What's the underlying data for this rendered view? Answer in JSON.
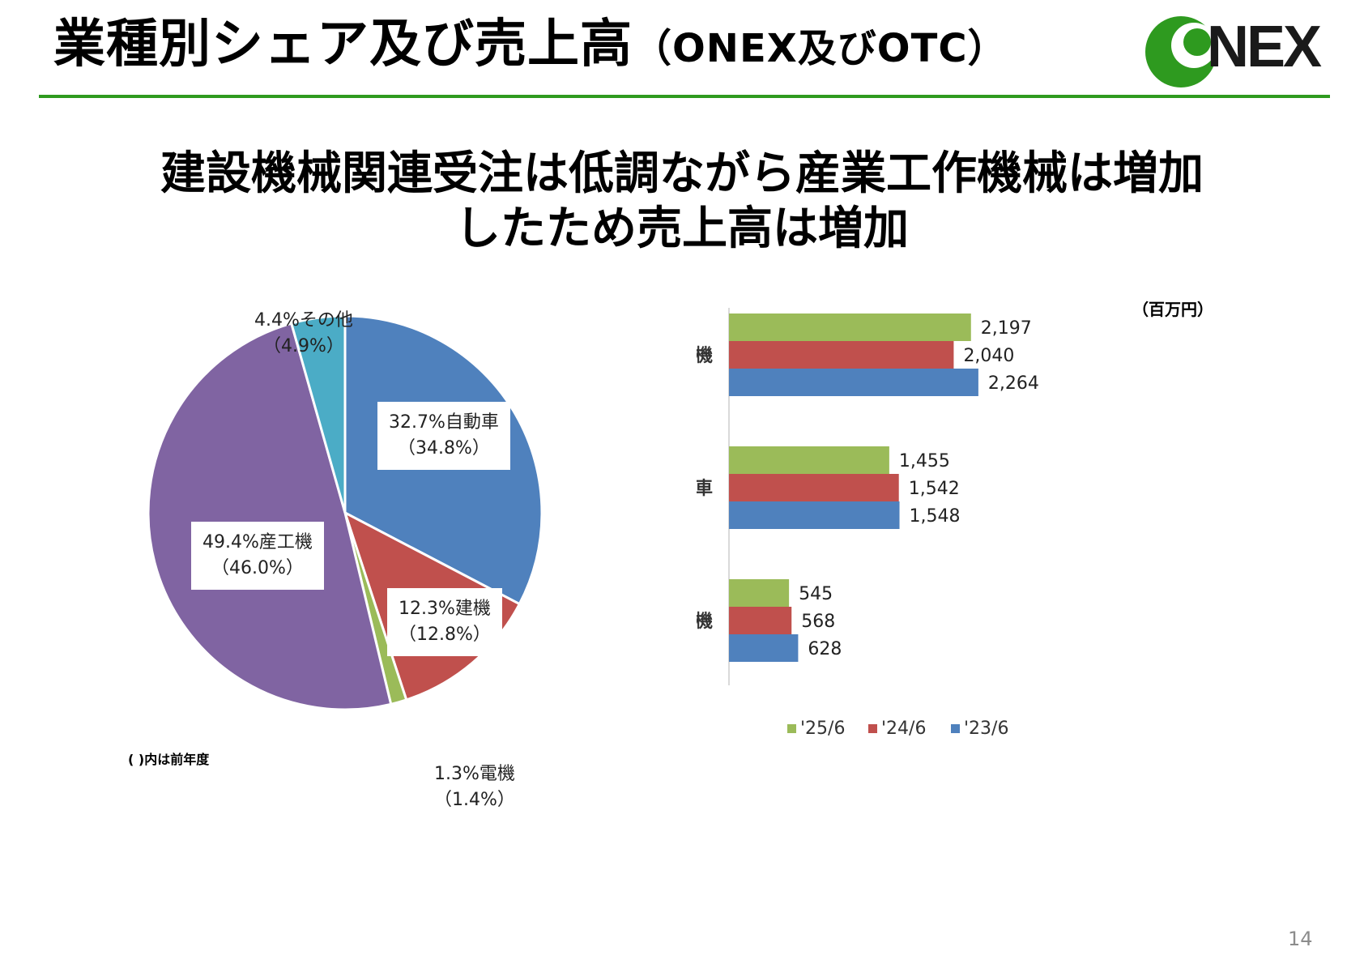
{
  "header": {
    "title": "業種別シェア及び売上高",
    "title_suffix": "（ONEX及びOTC）",
    "logo_text": "NEX",
    "accent_color": "#2e9a1f"
  },
  "headline": {
    "line1": "建設機械関連受注は低調ながら産業工作機械は増加",
    "line2": "したため売上高は増加"
  },
  "chart_data": [
    {
      "type": "pie",
      "start_angle_deg": 0,
      "direction": "clockwise",
      "slices": [
        {
          "name": "自動車",
          "value": 32.7,
          "prev": 34.8,
          "color": "#4f81bd",
          "label": "32.7%自動車",
          "sublabel": "（34.8%）"
        },
        {
          "name": "建機",
          "value": 12.3,
          "prev": 12.8,
          "color": "#c0504d",
          "label": "12.3%建機",
          "sublabel": "（12.8%）"
        },
        {
          "name": "電機",
          "value": 1.3,
          "prev": 1.4,
          "color": "#9bbb59",
          "label": "1.3%電機",
          "sublabel": "（1.4%）"
        },
        {
          "name": "産工機",
          "value": 49.4,
          "prev": 46.0,
          "color": "#8064a2",
          "label": "49.4%産工機",
          "sublabel": "（46.0%）"
        },
        {
          "name": "その他",
          "value": 4.4,
          "prev": 4.9,
          "color": "#4bacc6",
          "label": "4.4%その他",
          "sublabel": "（4.9%）"
        }
      ],
      "footnote": "( )内は前年度"
    },
    {
      "type": "bar",
      "orientation": "horizontal",
      "unit": "（百万円）",
      "categories": [
        "産工機",
        "自動車",
        "建機"
      ],
      "series": [
        {
          "name": "'25/6",
          "color": "#9bbb59",
          "values": [
            2197,
            1455,
            545
          ],
          "labels": [
            "2,197",
            "1,455",
            "545"
          ]
        },
        {
          "name": "'24/6",
          "color": "#c0504d",
          "values": [
            2040,
            1542,
            568
          ],
          "labels": [
            "2,040",
            "1,542",
            "568"
          ]
        },
        {
          "name": "'23/6",
          "color": "#4f81bd",
          "values": [
            2264,
            1548,
            628
          ],
          "labels": [
            "2,264",
            "1,548",
            "628"
          ]
        }
      ],
      "xlim": [
        0,
        2500
      ],
      "grid": false,
      "legend_position": "bottom"
    }
  ],
  "page_number": "14"
}
